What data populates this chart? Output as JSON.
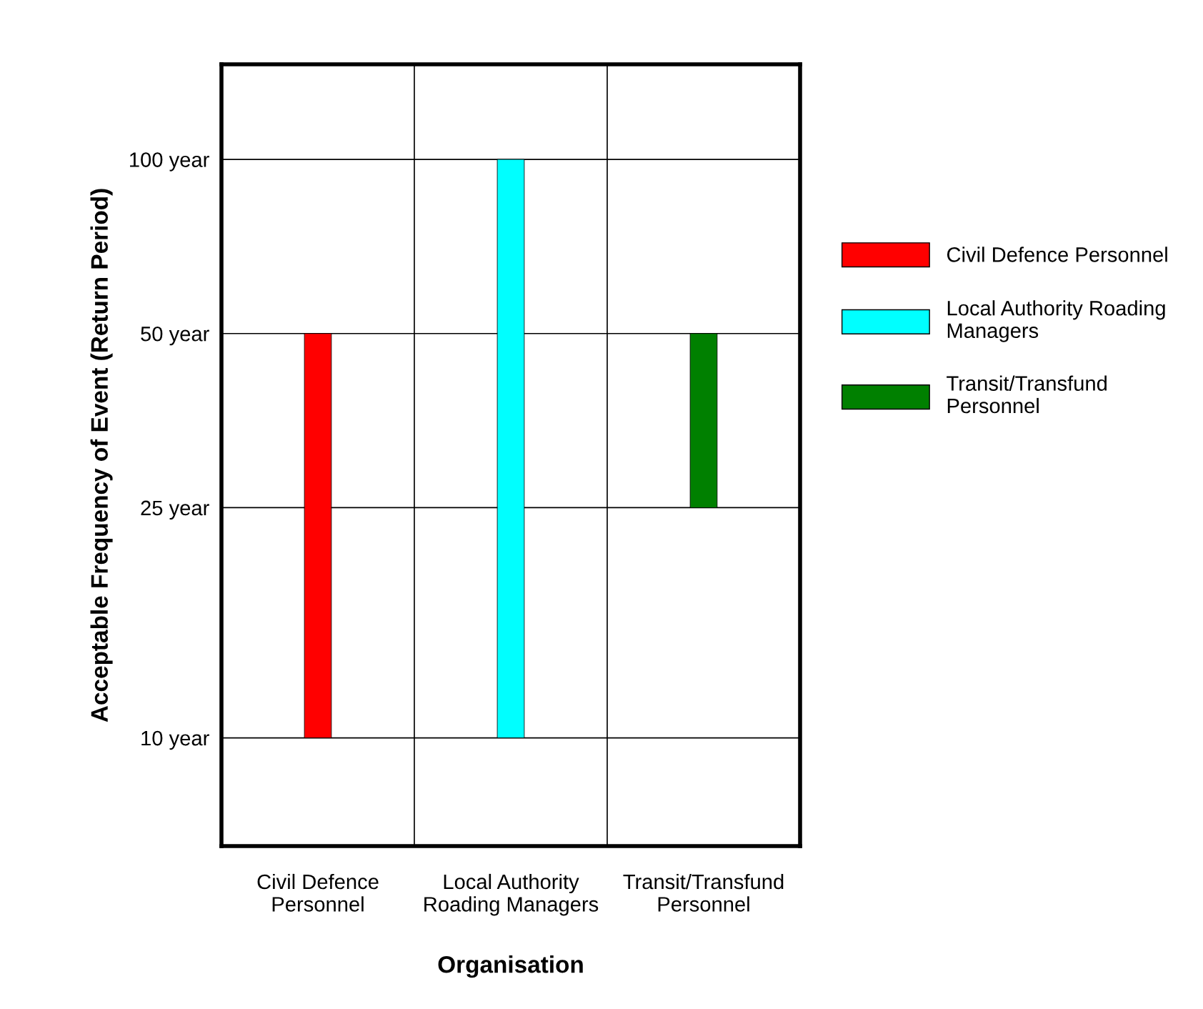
{
  "chart_data": {
    "type": "bar",
    "xlabel": "Organisation",
    "ylabel": "Acceptable Frequency of Event (Return Period)",
    "categories": [
      "Civil Defence Personnel",
      "Local Authority Roading Managers",
      "Transit/Transfund Personnel"
    ],
    "series": [
      {
        "name": "Civil Defence Personnel",
        "color": "#ff0000",
        "values": [
          40,
          null,
          null
        ],
        "base": [
          10,
          null,
          null
        ]
      },
      {
        "name": "Local Authority Roading Managers",
        "color": "#00ffff",
        "values": [
          null,
          90,
          null
        ],
        "base": [
          null,
          10,
          null
        ]
      },
      {
        "name": "Transit/Transfund Personnel",
        "color": "#008000",
        "values": [
          null,
          null,
          25
        ],
        "base": [
          null,
          null,
          25
        ]
      }
    ],
    "ylim": [
      6.5,
      146
    ],
    "log": "y",
    "yticks": [
      {
        "value": 10,
        "label": "10 year"
      },
      {
        "value": 25,
        "label": "25 year"
      },
      {
        "value": 50,
        "label": "50 year"
      },
      {
        "value": 100,
        "label": "100 year"
      }
    ],
    "grid": true,
    "legend": "right"
  }
}
